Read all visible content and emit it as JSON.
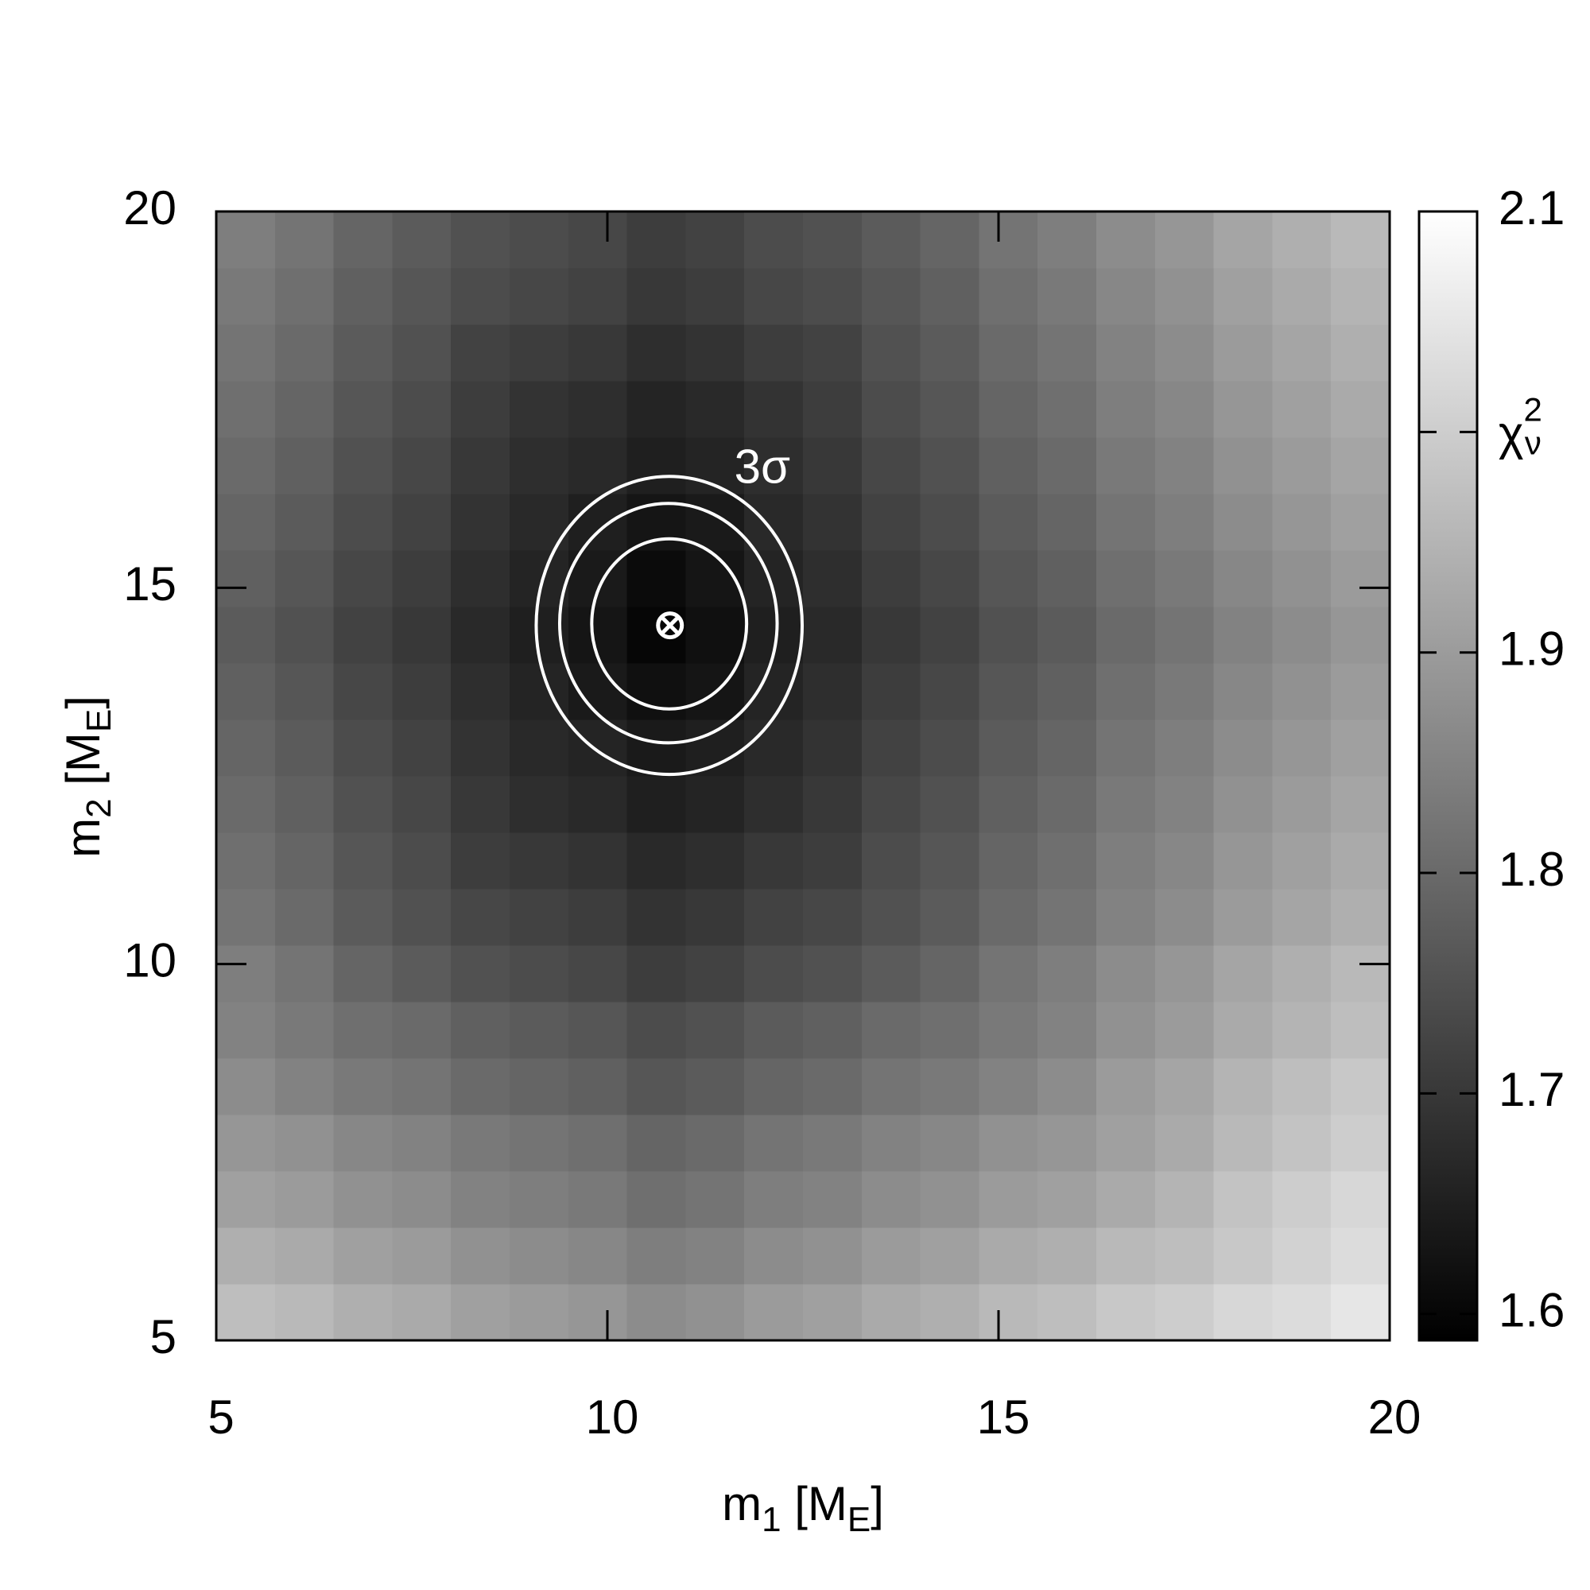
{
  "chart_data": {
    "type": "heatmap",
    "xlabel": [
      {
        "text": "m"
      },
      {
        "text": "1",
        "sub": true
      },
      {
        "text": " [M"
      },
      {
        "text": "E",
        "sub": true
      },
      {
        "text": "]"
      }
    ],
    "ylabel": [
      {
        "text": "m"
      },
      {
        "text": "2",
        "sub": true
      },
      {
        "text": " [M"
      },
      {
        "text": "E",
        "sub": true
      },
      {
        "text": "]"
      }
    ],
    "xlim": [
      5,
      20
    ],
    "ylim": [
      5,
      20
    ],
    "xticks": [
      5,
      10,
      15,
      20
    ],
    "yticks": [
      5,
      10,
      15,
      20
    ],
    "xbins": [
      5,
      5.75,
      6.5,
      7.25,
      8,
      8.75,
      9.5,
      10.25,
      11,
      11.75,
      12.5,
      13.25,
      14,
      14.75,
      15.5,
      16.25,
      17,
      17.75,
      18.5,
      19.25,
      20
    ],
    "ybins": [
      5,
      5.75,
      6.5,
      7.25,
      8,
      8.75,
      9.5,
      10.25,
      11,
      11.75,
      12.5,
      13.25,
      14,
      14.75,
      15.5,
      16.25,
      17,
      17.75,
      18.5,
      19.25,
      20
    ],
    "z": [
      [
        1.97,
        1.96,
        1.94,
        1.93,
        1.91,
        1.9,
        1.89,
        1.87,
        1.88,
        1.9,
        1.91,
        1.93,
        1.94,
        1.96,
        1.97,
        1.99,
        2.0,
        2.02,
        2.03,
        2.05
      ],
      [
        1.94,
        1.93,
        1.91,
        1.9,
        1.88,
        1.87,
        1.86,
        1.84,
        1.85,
        1.87,
        1.88,
        1.9,
        1.91,
        1.93,
        1.94,
        1.96,
        1.97,
        1.99,
        2.01,
        2.03
      ],
      [
        1.91,
        1.9,
        1.88,
        1.87,
        1.85,
        1.84,
        1.83,
        1.81,
        1.82,
        1.84,
        1.85,
        1.87,
        1.88,
        1.9,
        1.91,
        1.93,
        1.95,
        1.98,
        2.0,
        2.02
      ],
      [
        1.89,
        1.88,
        1.86,
        1.85,
        1.83,
        1.82,
        1.81,
        1.79,
        1.8,
        1.82,
        1.83,
        1.85,
        1.86,
        1.88,
        1.89,
        1.91,
        1.93,
        1.96,
        1.98,
        2.0
      ],
      [
        1.87,
        1.85,
        1.83,
        1.82,
        1.8,
        1.79,
        1.78,
        1.76,
        1.77,
        1.79,
        1.8,
        1.82,
        1.83,
        1.85,
        1.87,
        1.9,
        1.92,
        1.95,
        1.97,
        1.99
      ],
      [
        1.85,
        1.83,
        1.81,
        1.8,
        1.78,
        1.77,
        1.76,
        1.74,
        1.75,
        1.77,
        1.78,
        1.8,
        1.81,
        1.83,
        1.85,
        1.88,
        1.9,
        1.93,
        1.95,
        1.97
      ],
      [
        1.84,
        1.82,
        1.79,
        1.77,
        1.75,
        1.74,
        1.73,
        1.71,
        1.72,
        1.74,
        1.75,
        1.77,
        1.79,
        1.82,
        1.84,
        1.87,
        1.89,
        1.92,
        1.94,
        1.96
      ],
      [
        1.82,
        1.8,
        1.77,
        1.75,
        1.73,
        1.72,
        1.71,
        1.69,
        1.7,
        1.72,
        1.73,
        1.75,
        1.77,
        1.8,
        1.82,
        1.85,
        1.87,
        1.9,
        1.92,
        1.94
      ],
      [
        1.81,
        1.79,
        1.76,
        1.74,
        1.71,
        1.7,
        1.69,
        1.67,
        1.68,
        1.7,
        1.71,
        1.74,
        1.76,
        1.79,
        1.81,
        1.84,
        1.86,
        1.89,
        1.91,
        1.93
      ],
      [
        1.8,
        1.78,
        1.75,
        1.73,
        1.7,
        1.68,
        1.67,
        1.65,
        1.66,
        1.68,
        1.7,
        1.73,
        1.75,
        1.78,
        1.8,
        1.83,
        1.85,
        1.88,
        1.9,
        1.92
      ],
      [
        1.79,
        1.77,
        1.74,
        1.72,
        1.69,
        1.67,
        1.66,
        1.64,
        1.65,
        1.67,
        1.69,
        1.72,
        1.74,
        1.77,
        1.79,
        1.82,
        1.84,
        1.87,
        1.89,
        1.91
      ],
      [
        1.78,
        1.76,
        1.73,
        1.71,
        1.68,
        1.66,
        1.64,
        1.62,
        1.63,
        1.66,
        1.68,
        1.71,
        1.73,
        1.76,
        1.78,
        1.81,
        1.83,
        1.86,
        1.88,
        1.9
      ],
      [
        1.77,
        1.75,
        1.72,
        1.7,
        1.67,
        1.65,
        1.63,
        1.6,
        1.62,
        1.65,
        1.67,
        1.7,
        1.72,
        1.75,
        1.77,
        1.8,
        1.82,
        1.85,
        1.87,
        1.89
      ],
      [
        1.78,
        1.76,
        1.73,
        1.71,
        1.68,
        1.66,
        1.64,
        1.61,
        1.63,
        1.66,
        1.68,
        1.71,
        1.73,
        1.76,
        1.78,
        1.81,
        1.83,
        1.86,
        1.88,
        1.9
      ],
      [
        1.79,
        1.77,
        1.74,
        1.72,
        1.69,
        1.67,
        1.65,
        1.63,
        1.64,
        1.67,
        1.69,
        1.72,
        1.74,
        1.77,
        1.79,
        1.82,
        1.84,
        1.87,
        1.89,
        1.91
      ],
      [
        1.8,
        1.78,
        1.75,
        1.73,
        1.7,
        1.68,
        1.67,
        1.65,
        1.66,
        1.68,
        1.7,
        1.73,
        1.75,
        1.78,
        1.8,
        1.83,
        1.85,
        1.88,
        1.9,
        1.92
      ],
      [
        1.81,
        1.79,
        1.76,
        1.74,
        1.71,
        1.69,
        1.68,
        1.66,
        1.67,
        1.69,
        1.71,
        1.74,
        1.76,
        1.79,
        1.81,
        1.84,
        1.86,
        1.89,
        1.91,
        1.93
      ],
      [
        1.82,
        1.8,
        1.77,
        1.75,
        1.72,
        1.71,
        1.7,
        1.68,
        1.69,
        1.71,
        1.72,
        1.75,
        1.77,
        1.8,
        1.82,
        1.85,
        1.87,
        1.9,
        1.92,
        1.94
      ],
      [
        1.83,
        1.81,
        1.78,
        1.76,
        1.74,
        1.73,
        1.72,
        1.7,
        1.71,
        1.73,
        1.74,
        1.76,
        1.78,
        1.81,
        1.83,
        1.86,
        1.88,
        1.91,
        1.93,
        1.95
      ],
      [
        1.84,
        1.82,
        1.79,
        1.77,
        1.75,
        1.74,
        1.73,
        1.71,
        1.72,
        1.74,
        1.75,
        1.77,
        1.79,
        1.82,
        1.84,
        1.87,
        1.89,
        1.92,
        1.94,
        1.96
      ]
    ],
    "zlim": [
      1.588,
      2.1
    ],
    "zticks": [
      2.1,
      {
        "value": 2.0,
        "label": {
          "base": "χ",
          "sup": "2",
          "sub": "ν"
        }
      },
      1.9,
      1.8,
      1.7,
      1.6
    ],
    "colormap": [
      "#000000",
      "#ffffff"
    ],
    "contours": [
      {
        "cx": 10.79,
        "cy": 14.52,
        "rx": 0.99,
        "ry": 1.13
      },
      {
        "cx": 10.78,
        "cy": 14.53,
        "rx": 1.39,
        "ry": 1.59
      },
      {
        "cx": 10.79,
        "cy": 14.5,
        "rx": 1.7,
        "ry": 1.98,
        "label": "3σ"
      }
    ],
    "contour_color": "#ffffff",
    "best_fit": {
      "x": 10.8,
      "y": 14.5
    }
  }
}
